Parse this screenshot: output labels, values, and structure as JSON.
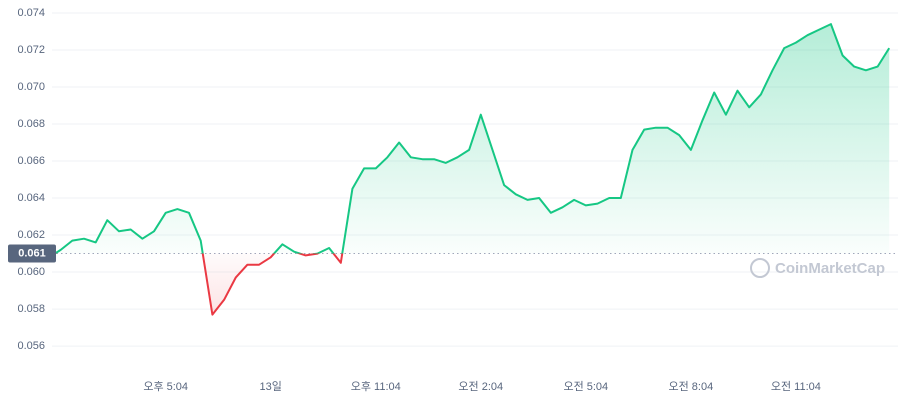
{
  "chart_data": {
    "type": "line",
    "categories": [
      null,
      null,
      null,
      null,
      null,
      null,
      null,
      null,
      null,
      null,
      "오후 5:04",
      null,
      null,
      null,
      null,
      null,
      null,
      null,
      null,
      "13일",
      null,
      null,
      null,
      null,
      null,
      null,
      null,
      null,
      "오후 11:04",
      null,
      null,
      null,
      null,
      null,
      null,
      null,
      null,
      "오전 2:04",
      null,
      null,
      null,
      null,
      null,
      null,
      null,
      null,
      "오전 5:04",
      null,
      null,
      null,
      null,
      null,
      null,
      null,
      null,
      "오전 8:04",
      null,
      null,
      null,
      null,
      null,
      null,
      null,
      null,
      "오전 11:04",
      null,
      null,
      null,
      null,
      null,
      null,
      null,
      null
    ],
    "series": [
      {
        "values": [
          0.0608,
          0.0612,
          0.0617,
          0.0618,
          0.0616,
          0.0628,
          0.0622,
          0.0623,
          0.0618,
          0.0622,
          0.0632,
          0.0634,
          0.0632,
          0.0617,
          0.0577,
          0.0585,
          0.0597,
          0.0604,
          0.0604,
          0.0608,
          0.0615,
          0.0611,
          0.0609,
          0.061,
          0.0613,
          0.0605,
          0.0645,
          0.0656,
          0.0656,
          0.0662,
          0.067,
          0.0662,
          0.0661,
          0.0661,
          0.0659,
          0.0662,
          0.0666,
          0.0685,
          0.0666,
          0.0647,
          0.0642,
          0.0639,
          0.064,
          0.0632,
          0.0635,
          0.0639,
          0.0636,
          0.0637,
          0.064,
          0.064,
          0.0666,
          0.0677,
          0.0678,
          0.0678,
          0.0674,
          0.0666,
          0.0682,
          0.0697,
          0.0685,
          0.0698,
          0.0689,
          0.0696,
          0.0709,
          0.0721,
          0.0724,
          0.0728,
          0.0731,
          0.0734,
          0.0717,
          0.0711,
          0.0709,
          0.0711,
          0.0721
        ]
      }
    ],
    "baseline": 0.061,
    "up_color": "#16c784",
    "down_color": "#ea3943",
    "ylim": [
      0.0546,
      0.0747
    ],
    "yticks": [
      0.056,
      0.058,
      {
        "value": 0.06,
        "label": "0.060"
      },
      0.062,
      0.064,
      0.066,
      0.068,
      {
        "value": 0.07,
        "label": "0.070"
      },
      0.072,
      0.074
    ],
    "grid": true,
    "watermark": "CoinMarketCap"
  }
}
